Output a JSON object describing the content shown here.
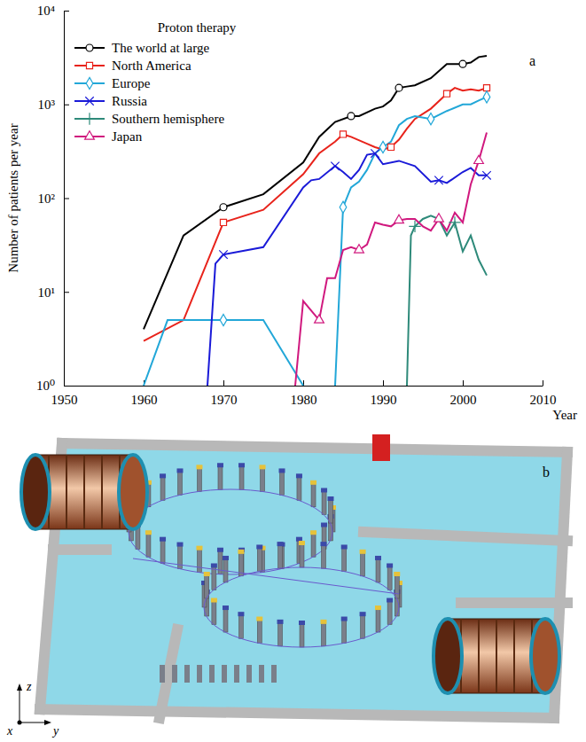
{
  "chart_data": {
    "type": "line",
    "title": "Proton therapy",
    "panel_label": "a",
    "x_label": "Year",
    "y_label": "Number of patients per year",
    "log": "y",
    "legend": "upper left",
    "xlim": [
      1950,
      2010
    ],
    "xticks": [
      1950,
      1960,
      1970,
      1980,
      1990,
      2000,
      2010
    ],
    "ylim": [
      1,
      10000
    ],
    "yticks": [
      {
        "value": 1,
        "label": "10⁰"
      },
      {
        "value": 10,
        "label": "10¹"
      },
      {
        "value": 100,
        "label": "10²"
      },
      {
        "value": 1000,
        "label": "10³"
      },
      {
        "value": 10000,
        "label": "10⁴"
      }
    ],
    "series": [
      {
        "name": "The world at large",
        "color": "#000000",
        "marker": "circle",
        "x": [
          1960,
          1965,
          1970,
          1975,
          1980,
          1982,
          1984,
          1986,
          1987,
          1989,
          1990,
          1991,
          1992,
          1993,
          1994,
          1996,
          1998,
          2000,
          2001,
          2002,
          2003
        ],
        "values": [
          4,
          40,
          80,
          110,
          240,
          450,
          650,
          750,
          750,
          900,
          950,
          1100,
          1500,
          1550,
          1600,
          1900,
          2700,
          2700,
          2800,
          3200,
          3300
        ]
      },
      {
        "name": "North America",
        "color": "#e8231b",
        "marker": "square",
        "x": [
          1960,
          1965,
          1970,
          1975,
          1980,
          1982,
          1984,
          1985,
          1986,
          1988,
          1989,
          1990,
          1991,
          1992,
          1993,
          1994,
          1996,
          1998,
          1999,
          2000,
          2001,
          2002,
          2003
        ],
        "values": [
          3,
          5,
          55,
          75,
          180,
          300,
          400,
          480,
          450,
          380,
          350,
          330,
          350,
          420,
          550,
          700,
          900,
          1300,
          1500,
          1400,
          1450,
          1400,
          1500
        ]
      },
      {
        "name": "Europe",
        "color": "#22a7d8",
        "marker": "diamond",
        "x": [
          1960,
          1963,
          1970,
          1975,
          1980,
          1982,
          1984,
          1985,
          1986,
          1987,
          1988,
          1989,
          1990,
          1991,
          1992,
          1993,
          1994,
          1996,
          1998,
          2000,
          2001,
          2002,
          2003
        ],
        "values": [
          1,
          5,
          5,
          5,
          1,
          null,
          1,
          80,
          130,
          150,
          200,
          300,
          350,
          400,
          600,
          700,
          750,
          700,
          850,
          1000,
          1000,
          1100,
          1200
        ]
      },
      {
        "name": "Russia",
        "color": "#1a1ad8",
        "marker": "x",
        "x": [
          1968,
          1969,
          1970,
          1975,
          1980,
          1981,
          1982,
          1984,
          1985,
          1986,
          1987,
          1988,
          1989,
          1990,
          1992,
          1994,
          1996,
          1997,
          1998,
          2000,
          2001,
          2002,
          2003
        ],
        "values": [
          1,
          20,
          25,
          30,
          130,
          155,
          160,
          220,
          190,
          160,
          200,
          290,
          300,
          230,
          250,
          220,
          150,
          155,
          145,
          190,
          210,
          175,
          175
        ]
      },
      {
        "name": "Southern hemisphere",
        "color": "#2e8a7a",
        "marker": "plus",
        "x": [
          1993,
          1993.5,
          1994,
          1995,
          1996,
          1997,
          1998,
          1999,
          2000,
          2001,
          2002,
          2003
        ],
        "values": [
          1,
          40,
          50,
          60,
          65,
          60,
          40,
          55,
          27,
          40,
          22,
          15
        ]
      },
      {
        "name": "Japan",
        "color": "#d0187e",
        "marker": "triangle",
        "x": [
          1979,
          1980,
          1982,
          1983,
          1984,
          1985,
          1986,
          1987,
          1988,
          1989,
          1990,
          1991,
          1992,
          1993,
          1994,
          1995,
          1996,
          1997,
          1998,
          1999,
          2000,
          2001,
          2002,
          2003
        ],
        "values": [
          1,
          8,
          5,
          14,
          14,
          28,
          30,
          28,
          32,
          55,
          52,
          50,
          58,
          60,
          60,
          50,
          45,
          60,
          45,
          70,
          55,
          140,
          250,
          500
        ]
      }
    ]
  },
  "figure_b": {
    "panel_label": "b",
    "axes": [
      "x",
      "y",
      "z"
    ]
  }
}
